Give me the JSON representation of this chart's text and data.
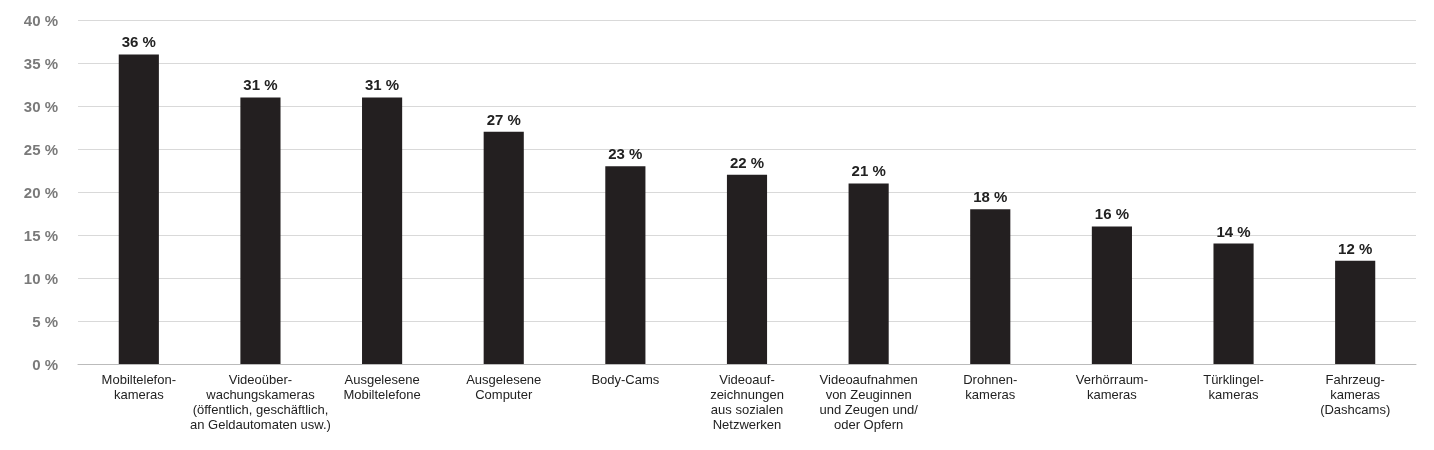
{
  "chart_data": {
    "type": "bar",
    "categories": [
      "Mobiltelefon-\nkameras",
      "Videoüber-\nwachungskameras\n(öffentlich, geschäftlich,\nan Geldautomaten usw.)",
      "Ausgelesene\nMobiltelefone",
      "Ausgelesene\nComputer",
      "Body-Cams",
      "Videoauf-\nzeichnungen\naus sozialen\nNetzwerken",
      "Videoaufnahmen\nvon Zeuginnen\nund Zeugen und/\noder Opfern",
      "Drohnen-\nkameras",
      "Verhörraum-\nkameras",
      "Türklingel-\nkameras",
      "Fahrzeug-\nkameras\n(Dashcams)"
    ],
    "values": [
      36,
      31,
      31,
      27,
      23,
      22,
      21,
      18,
      16,
      14,
      12
    ],
    "value_labels": [
      "36 %",
      "31 %",
      "31 %",
      "27 %",
      "23 %",
      "22 %",
      "21 %",
      "18 %",
      "16 %",
      "14 %",
      "12 %"
    ],
    "color": "#231f20",
    "ylim": [
      0,
      40
    ],
    "yticks": [
      {
        "value": 0,
        "label": "0 %"
      },
      {
        "value": 5,
        "label": "5 %"
      },
      {
        "value": 10,
        "label": "10 %"
      },
      {
        "value": 15,
        "label": "15 %"
      },
      {
        "value": 20,
        "label": "20 %"
      },
      {
        "value": 25,
        "label": "25 %"
      },
      {
        "value": 30,
        "label": "30 %"
      },
      {
        "value": 35,
        "label": "35 %"
      },
      {
        "value": 40,
        "label": "40 %"
      }
    ],
    "grid": "y"
  }
}
